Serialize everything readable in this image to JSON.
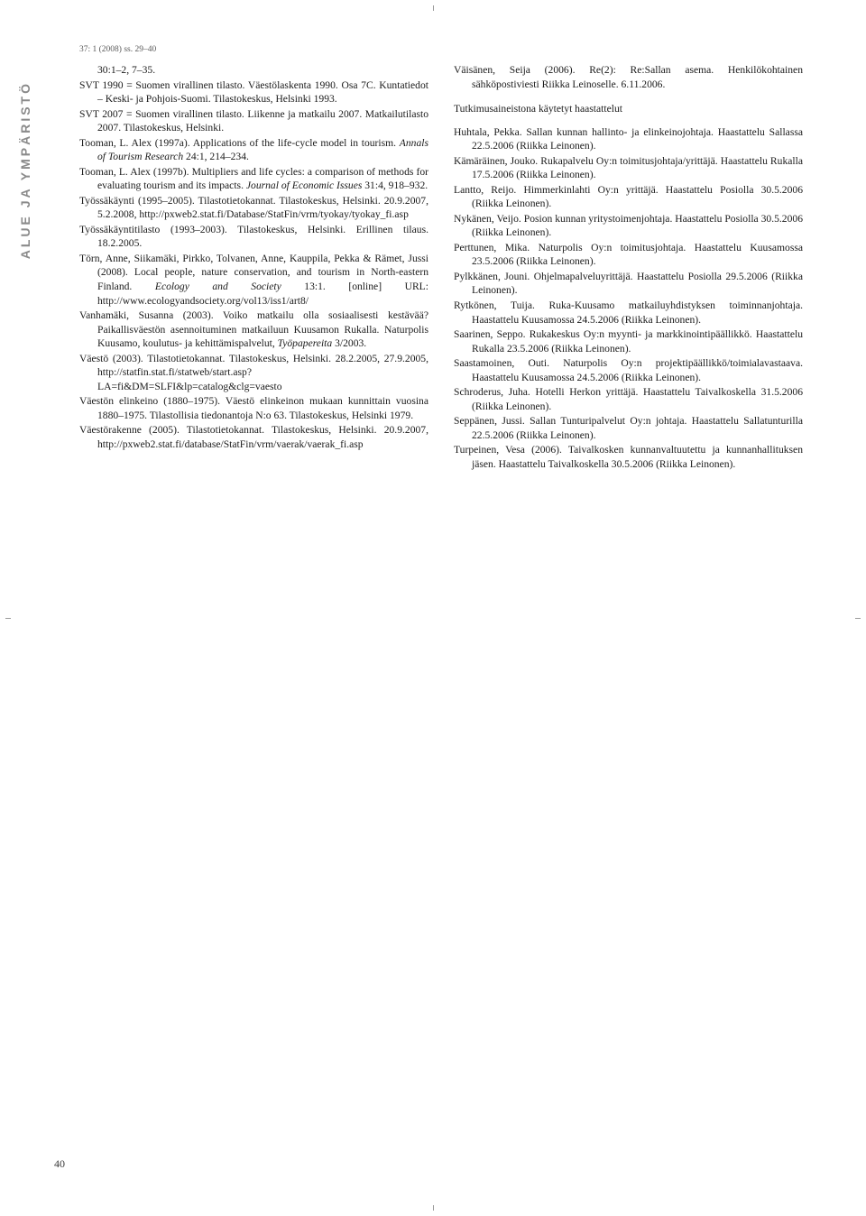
{
  "sidebar_label": "ALUE JA YMPÄRISTÖ",
  "issue_line": "37: 1 (2008) ss. 29–40",
  "page_number": "40",
  "left_column": [
    {
      "cls": "ref ref-first",
      "html": "30:1–2, 7–35."
    },
    {
      "cls": "ref",
      "html": "SVT 1990 = Suomen virallinen tilasto. Väestölaskenta 1990. Osa 7C. Kuntatiedot – Keski- ja Pohjois-Suomi. Tilastokeskus, Helsinki 1993."
    },
    {
      "cls": "ref",
      "html": "SVT 2007 = Suomen virallinen tilasto. Liikenne ja matkailu 2007. Matkailutilasto 2007. Tilastokeskus, Helsinki."
    },
    {
      "cls": "ref",
      "html": "Tooman, L. Alex (1997a). Applications of the life-cycle model in tourism. <span class='italic'>Annals of Tourism Research</span> 24:1, 214–234."
    },
    {
      "cls": "ref",
      "html": "Tooman, L. Alex (1997b). Multipliers and life cycles: a comparison of methods for evaluating tourism and its impacts. <span class='italic'>Journal of Economic Issues</span> 31:4, 918–932."
    },
    {
      "cls": "ref",
      "html": "Työssäkäynti (1995–2005). Tilastotietokannat. Tilastokeskus, Helsinki. 20.9.2007, 5.2.2008, http://pxweb2.stat.fi/Database/StatFin/vrm/tyokay/tyokay_fi.asp"
    },
    {
      "cls": "ref",
      "html": "Työssäkäyntitilasto (1993–2003). Tilastokeskus, Helsinki. Erillinen tilaus. 18.2.2005."
    },
    {
      "cls": "ref",
      "html": "Törn, Anne, Siikamäki, Pirkko, Tolvanen, Anne, Kauppila, Pekka & Rämet, Jussi (2008). Local people, nature conservation, and tourism in North-eastern Finland. <span class='italic'>Ecology and Society</span> 13:1. [online] URL: http://www.ecologyandsociety.org/vol13/iss1/art8/"
    },
    {
      "cls": "ref",
      "html": "Vanhamäki, Susanna (2003). Voiko matkailu olla sosiaalisesti kestävää? Paikallisväestön asennoituminen matkailuun Kuusamon Rukalla. Naturpolis Kuusamo, koulutus- ja kehittämispalvelut, <span class='italic'>Työpapereita</span> 3/2003."
    },
    {
      "cls": "ref",
      "html": "Väestö (2003). Tilastotietokannat. Tilastokeskus, Helsinki. 28.2.2005, 27.9.2005, http://statfin.stat.fi/statweb/start.asp?LA=fi&DM=SLFI&lp=catalog&clg=vaesto"
    },
    {
      "cls": "ref",
      "html": "Väestön elinkeino (1880–1975). Väestö elinkeinon mukaan kunnittain vuosina 1880–1975. Tilastollisia tiedonantoja N:o 63. Tilastokeskus, Helsinki 1979."
    },
    {
      "cls": "ref",
      "html": "Väestörakenne (2005). Tilastotietokannat. Tilastokeskus, Helsinki. 20.9.2007, http://pxweb2.stat.fi/database/StatFin/vrm/vaerak/vaerak_fi.asp"
    }
  ],
  "right_column_top": [
    {
      "cls": "ref",
      "html": "Väisänen, Seija (2006). Re(2): Re:Sallan asema. Henkilökohtainen sähköpostiviesti Riikka Leinoselle. 6.11.2006."
    }
  ],
  "section_heading": "Tutkimusaineistona käytetyt haastattelut",
  "right_column_bottom": [
    {
      "cls": "ref",
      "html": "Huhtala, Pekka. Sallan kunnan hallinto- ja elinkeinojohtaja. Haastattelu Sallassa 22.5.2006 (Riikka Leinonen)."
    },
    {
      "cls": "ref",
      "html": "Kämäräinen, Jouko. Rukapalvelu Oy:n toimitusjohtaja/yrittäjä. Haastattelu Rukalla 17.5.2006 (Riikka Leinonen)."
    },
    {
      "cls": "ref",
      "html": "Lantto, Reijo. Himmerkinlahti Oy:n yrittäjä. Haastattelu Posiolla 30.5.2006 (Riikka Leinonen)."
    },
    {
      "cls": "ref",
      "html": "Nykänen, Veijo. Posion kunnan yritystoimenjohtaja. Haastattelu Posiolla 30.5.2006 (Riikka Leinonen)."
    },
    {
      "cls": "ref",
      "html": "Perttunen, Mika. Naturpolis Oy:n toimitusjohtaja. Haastattelu Kuusamossa 23.5.2006 (Riikka Leinonen)."
    },
    {
      "cls": "ref",
      "html": "Pylkkänen, Jouni. Ohjelmapalveluyrittäjä. Haastattelu Posiolla 29.5.2006 (Riikka Leinonen)."
    },
    {
      "cls": "ref",
      "html": "Rytkönen, Tuija. Ruka-Kuusamo matkailuyhdistyksen toiminnanjohtaja. Haastattelu Kuusamossa 24.5.2006 (Riikka Leinonen)."
    },
    {
      "cls": "ref",
      "html": "Saarinen, Seppo. Rukakeskus Oy:n myynti- ja markkinointipäällikkö. Haastattelu Rukalla 23.5.2006 (Riikka Leinonen)."
    },
    {
      "cls": "ref",
      "html": "Saastamoinen, Outi. Naturpolis Oy:n projektipäällikkö/toimialavastaava. Haastattelu Kuusamossa 24.5.2006 (Riikka Leinonen)."
    },
    {
      "cls": "ref",
      "html": "Schroderus, Juha. Hotelli Herkon yrittäjä. Haastattelu Taivalkoskella 31.5.2006 (Riikka Leinonen)."
    },
    {
      "cls": "ref",
      "html": "Seppänen, Jussi. Sallan Tunturipalvelut Oy:n johtaja. Haastattelu Sallatunturilla 22.5.2006 (Riikka Leinonen)."
    },
    {
      "cls": "ref",
      "html": "Turpeinen, Vesa (2006). Taivalkosken kunnanvaltuutettu ja kunnanhallituksen jäsen. Haastattelu Taivalkoskella 30.5.2006 (Riikka Leinonen)."
    }
  ]
}
